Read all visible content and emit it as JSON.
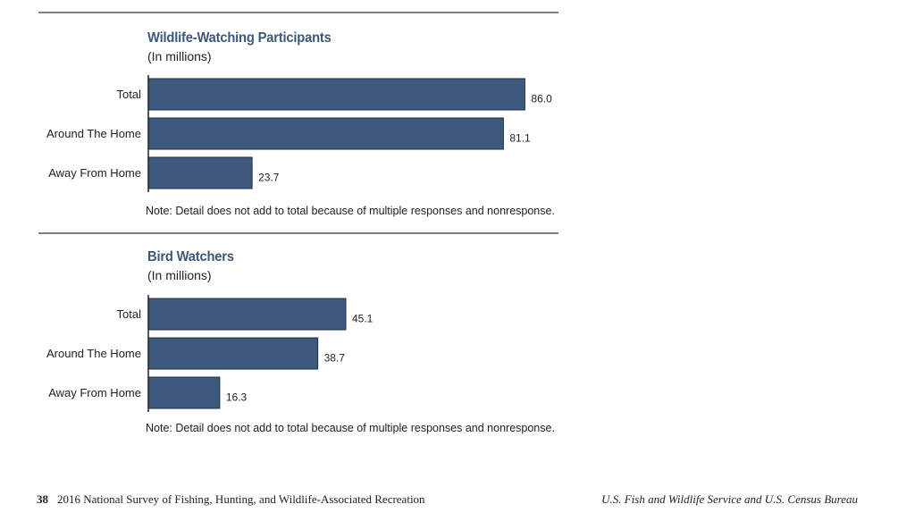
{
  "chart_data": [
    {
      "type": "bar",
      "orientation": "horizontal",
      "title": "Wildlife-Watching Participants",
      "subtitle": "(In millions)",
      "categories": [
        "Total",
        "Around The Home",
        "Away From Home"
      ],
      "values": [
        86.0,
        81.1,
        23.7
      ],
      "value_labels": [
        "86.0",
        "81.1",
        "23.7"
      ],
      "xlim": [
        0,
        100
      ],
      "grid": false,
      "note": "Note: Detail does not add to total because of multiple responses and nonresponse.",
      "bar_color": "#3d5a7c"
    },
    {
      "type": "bar",
      "orientation": "horizontal",
      "title": "Bird Watchers",
      "subtitle": "(In millions)",
      "categories": [
        "Total",
        "Around The Home",
        "Away From Home"
      ],
      "values": [
        45.1,
        38.7,
        16.3
      ],
      "value_labels": [
        "45.1",
        "38.7",
        "16.3"
      ],
      "xlim": [
        0,
        100
      ],
      "grid": false,
      "note": "Note: Detail does not add to total because of multiple responses and nonresponse.",
      "bar_color": "#3d5a7c"
    }
  ],
  "footer": {
    "page_number": "38",
    "publication": "2016 National Survey of Fishing, Hunting, and Wildlife-Associated Recreation",
    "agencies": "U.S. Fish and Wildlife Service and U.S. Census Bureau"
  },
  "colors": {
    "title": "#3b5878",
    "bar": "#3d5a7c",
    "rule": "#7f7f7f"
  }
}
